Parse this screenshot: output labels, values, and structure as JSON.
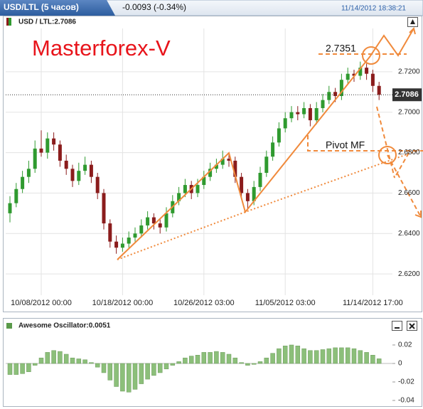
{
  "header": {
    "tab": "USD/LTL (5 часов)",
    "change": "-0.0093 (-0.34%)",
    "timestamp": "11/14/2012 18:38:21"
  },
  "chart_data": [
    {
      "type": "candlestick",
      "title": "USD / LTL:2.7086",
      "watermark": "Masterforex-V",
      "annotations": [
        "2.7351",
        "Pivot MF"
      ],
      "last_price": 2.7086,
      "up_color": "#2f9a2f",
      "down_color": "#8b1c1c",
      "grid": true,
      "categories": [
        null,
        null,
        null,
        null,
        null,
        "10/08/2012 00:00",
        null,
        null,
        null,
        null,
        null,
        null,
        null,
        null,
        null,
        null,
        null,
        null,
        "10/18/2012 00:00",
        null,
        null,
        null,
        null,
        null,
        null,
        null,
        null,
        null,
        null,
        null,
        null,
        "10/26/2012 03:00",
        null,
        null,
        null,
        null,
        null,
        null,
        null,
        null,
        null,
        null,
        null,
        null,
        "11/05/2012 03:00",
        null,
        null,
        null,
        null,
        null,
        null,
        null,
        null,
        null,
        null,
        null,
        null,
        null,
        "11/14/2012 17:00",
        null
      ],
      "ohlc": [
        [
          2.65,
          2.6585,
          2.6455,
          2.655
        ],
        [
          2.655,
          2.665,
          2.653,
          2.662
        ],
        [
          2.662,
          2.671,
          2.66,
          2.668
        ],
        [
          2.668,
          2.676,
          2.665,
          2.672
        ],
        [
          2.672,
          2.686,
          2.67,
          2.682
        ],
        [
          2.682,
          2.691,
          2.678,
          2.68
        ],
        [
          2.68,
          2.69,
          2.677,
          2.687
        ],
        [
          2.687,
          2.69,
          2.681,
          2.684
        ],
        [
          2.684,
          2.686,
          2.673,
          2.676
        ],
        [
          2.676,
          2.679,
          2.669,
          2.672
        ],
        [
          2.672,
          2.674,
          2.663,
          2.666
        ],
        [
          2.666,
          2.675,
          2.664,
          2.671
        ],
        [
          2.671,
          2.678,
          2.669,
          2.674
        ],
        [
          2.674,
          2.676,
          2.665,
          2.668
        ],
        [
          2.668,
          2.67,
          2.657,
          2.66
        ],
        [
          2.66,
          2.662,
          2.642,
          2.645
        ],
        [
          2.645,
          2.647,
          2.633,
          2.636
        ],
        [
          2.636,
          2.639,
          2.63,
          2.633
        ],
        [
          2.633,
          2.638,
          2.631,
          2.635
        ],
        [
          2.635,
          2.641,
          2.633,
          2.638
        ],
        [
          2.638,
          2.643,
          2.636,
          2.64
        ],
        [
          2.64,
          2.647,
          2.638,
          2.644
        ],
        [
          2.644,
          2.651,
          2.642,
          2.648
        ],
        [
          2.648,
          2.65,
          2.642,
          2.645
        ],
        [
          2.645,
          2.647,
          2.64,
          2.643
        ],
        [
          2.643,
          2.653,
          2.641,
          2.65
        ],
        [
          2.65,
          2.659,
          2.648,
          2.656
        ],
        [
          2.656,
          2.663,
          2.654,
          2.66
        ],
        [
          2.66,
          2.667,
          2.658,
          2.664
        ],
        [
          2.664,
          2.666,
          2.657,
          2.66
        ],
        [
          2.66,
          2.667,
          2.658,
          2.664
        ],
        [
          2.664,
          2.671,
          2.662,
          2.668
        ],
        [
          2.668,
          2.675,
          2.666,
          2.672
        ],
        [
          2.672,
          2.677,
          2.67,
          2.674
        ],
        [
          2.674,
          2.681,
          2.672,
          2.677
        ],
        [
          2.677,
          2.68,
          2.673,
          2.676
        ],
        [
          2.676,
          2.678,
          2.665,
          2.668
        ],
        [
          2.668,
          2.67,
          2.657,
          2.66
        ],
        [
          2.66,
          2.662,
          2.652,
          2.656
        ],
        [
          2.656,
          2.666,
          2.654,
          2.663
        ],
        [
          2.663,
          2.673,
          2.661,
          2.67
        ],
        [
          2.67,
          2.681,
          2.668,
          2.678
        ],
        [
          2.678,
          2.688,
          2.676,
          2.685
        ],
        [
          2.685,
          2.695,
          2.683,
          2.692
        ],
        [
          2.692,
          2.7,
          2.69,
          2.697
        ],
        [
          2.697,
          2.703,
          2.695,
          2.7
        ],
        [
          2.7,
          2.703,
          2.696,
          2.699
        ],
        [
          2.699,
          2.705,
          2.697,
          2.702
        ],
        [
          2.702,
          2.704,
          2.693,
          2.696
        ],
        [
          2.696,
          2.705,
          2.694,
          2.702
        ],
        [
          2.702,
          2.709,
          2.7,
          2.706
        ],
        [
          2.706,
          2.713,
          2.704,
          2.71
        ],
        [
          2.71,
          2.712,
          2.705,
          2.708
        ],
        [
          2.708,
          2.719,
          2.706,
          2.716
        ],
        [
          2.716,
          2.722,
          2.714,
          2.719
        ],
        [
          2.719,
          2.721,
          2.715,
          2.718
        ],
        [
          2.718,
          2.725,
          2.716,
          2.722
        ],
        [
          2.722,
          2.724,
          2.716,
          2.719
        ],
        [
          2.719,
          2.721,
          2.71,
          2.713
        ],
        [
          2.713,
          2.715,
          2.706,
          2.7086
        ]
      ],
      "ylim": [
        2.6095,
        2.7414
      ],
      "yticks": [
        {
          "value": 2.62,
          "label": "2.6200"
        },
        {
          "value": 2.64,
          "label": "2.6400"
        },
        {
          "value": 2.66,
          "label": "2.6600"
        },
        {
          "value": 2.68,
          "label": "2.6800"
        },
        {
          "value": 2.7,
          "label": "2.7000"
        },
        {
          "value": 2.72,
          "label": "2.7200"
        }
      ]
    },
    {
      "type": "bar",
      "title": "Awesome Oscillator:0.0051",
      "color": "#8cbf7a",
      "values": [
        -0.012,
        -0.012,
        -0.011,
        -0.009,
        -0.002,
        0.006,
        0.012,
        0.014,
        0.013,
        0.01,
        0.006,
        0.005,
        0.004,
        0.001,
        -0.004,
        -0.01,
        -0.018,
        -0.025,
        -0.03,
        -0.031,
        -0.028,
        -0.022,
        -0.017,
        -0.013,
        -0.01,
        -0.006,
        -0.002,
        0.002,
        0.006,
        0.008,
        0.009,
        0.012,
        0.012,
        0.013,
        0.012,
        0.01,
        0.006,
        0.001,
        -0.002,
        -0.001,
        0.002,
        0.006,
        0.011,
        0.016,
        0.019,
        0.02,
        0.019,
        0.016,
        0.014,
        0.014,
        0.015,
        0.016,
        0.017,
        0.017,
        0.017,
        0.016,
        0.014,
        0.012,
        0.009,
        0.0051
      ],
      "ylim": [
        -0.0431,
        0.0346
      ],
      "yticks": [
        -0.04,
        -0.02,
        0,
        0.02
      ]
    }
  ]
}
